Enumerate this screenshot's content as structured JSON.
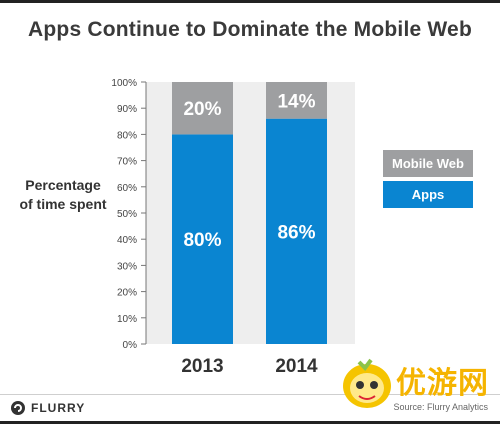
{
  "title": "Apps Continue to Dominate the Mobile Web",
  "y_axis_label_line1": "Percentage",
  "y_axis_label_line2": "of time spent",
  "legend": {
    "mobile_web": "Mobile Web",
    "apps": "Apps"
  },
  "colors": {
    "apps": "#0a85d1",
    "mobile_web": "#9e9fa1",
    "plot_bg": "#eeeeee",
    "title": "#3a3a3a"
  },
  "footer": {
    "brand": "FLURRY",
    "source": "Source: Flurry Analytics"
  },
  "watermark": {
    "text": "优游网"
  },
  "chart_data": {
    "type": "bar",
    "stacked": true,
    "title": "Apps Continue to Dominate the Mobile Web",
    "ylabel": "Percentage of time spent",
    "xlabel": "",
    "categories": [
      "2013",
      "2014"
    ],
    "series": [
      {
        "name": "Apps",
        "values": [
          80,
          86
        ],
        "labels": [
          "80%",
          "86%"
        ]
      },
      {
        "name": "Mobile Web",
        "values": [
          20,
          14
        ],
        "labels": [
          "20%",
          "14%"
        ]
      }
    ],
    "ylim": [
      0,
      100
    ],
    "yticks": [
      "0%",
      "10%",
      "20%",
      "30%",
      "40%",
      "50%",
      "60%",
      "70%",
      "80%",
      "90%",
      "100%"
    ],
    "ytick_values": [
      0,
      10,
      20,
      30,
      40,
      50,
      60,
      70,
      80,
      90,
      100
    ],
    "grid": false,
    "legend_position": "right"
  }
}
